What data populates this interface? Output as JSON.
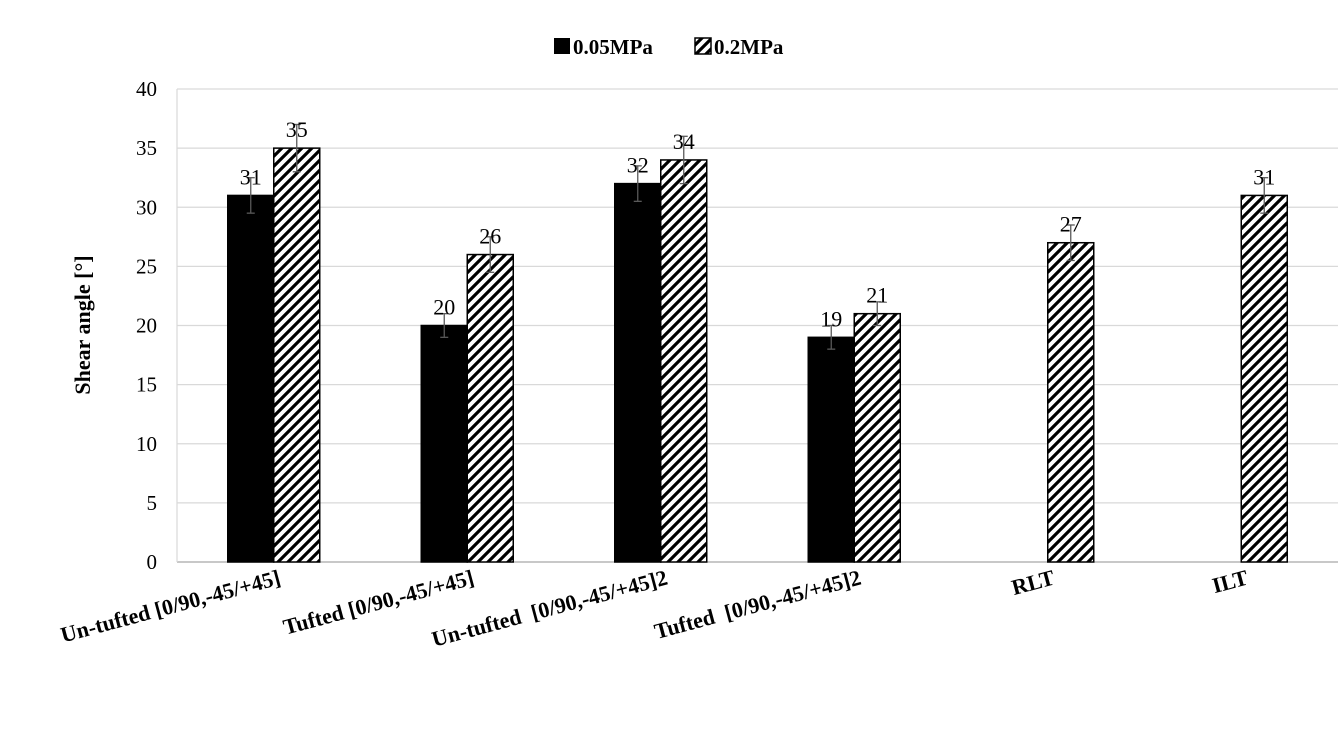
{
  "chart_data": {
    "type": "bar",
    "title": "",
    "xlabel": "",
    "ylabel": "Shear angle [°]",
    "ylim": [
      0,
      40
    ],
    "yticks": [
      0,
      5,
      10,
      15,
      20,
      25,
      30,
      35,
      40
    ],
    "grid": true,
    "legend_position": "top",
    "categories": [
      "Un-tufted [0/90,-45/+45]",
      "Tufted [0/90,-45/+45]",
      "Un-tufted  [0/90,-45/+45]2",
      "Tufted  [0/90,-45/+45]2",
      "RLT",
      "ILT"
    ],
    "series": [
      {
        "name": "0.05MPa",
        "fill": "solid",
        "color": "#000000",
        "values": [
          31,
          20,
          32,
          19,
          null,
          null
        ],
        "error": [
          1.5,
          1.0,
          1.5,
          1.0,
          null,
          null
        ]
      },
      {
        "name": "0.2MPa",
        "fill": "hatched",
        "color": "#000000",
        "values": [
          35,
          26,
          34,
          21,
          27,
          31
        ],
        "error": [
          2.0,
          1.5,
          2.0,
          1.0,
          1.5,
          1.5
        ]
      }
    ]
  }
}
